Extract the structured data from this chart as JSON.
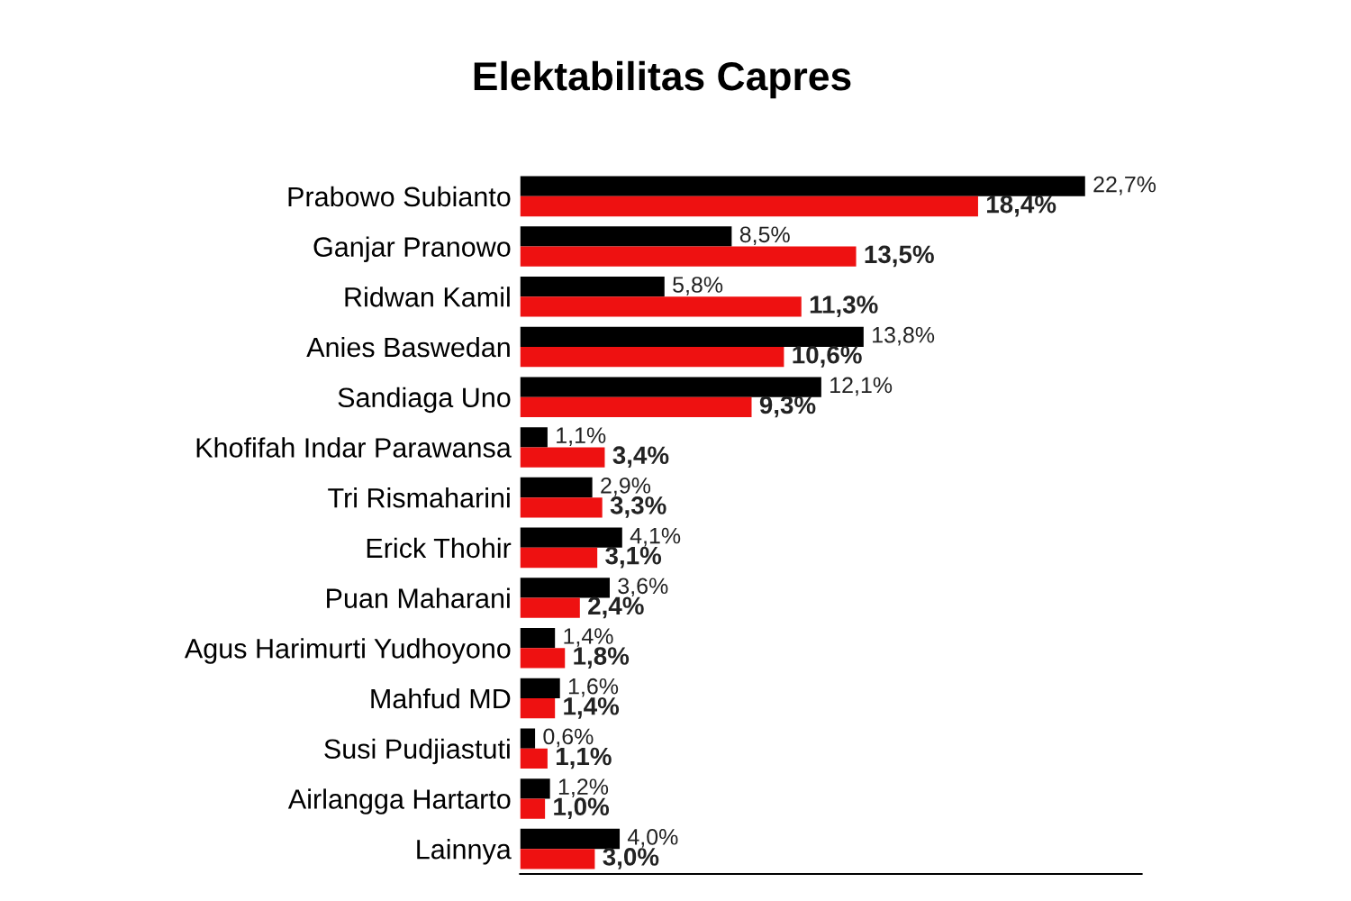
{
  "chart_data": {
    "type": "bar",
    "orientation": "horizontal",
    "title": "Elektabilitas Capres",
    "categories": [
      "Prabowo Subianto",
      "Ganjar Pranowo",
      "Ridwan Kamil",
      "Anies Baswedan",
      "Sandiaga Uno",
      "Khofifah Indar Parawansa",
      "Tri Rismaharini",
      "Erick Thohir",
      "Puan Maharani",
      "Agus Harimurti Yudhoyono",
      "Mahfud MD",
      "Susi Pudjiastuti",
      "Airlangga Hartarto",
      "Lainnya"
    ],
    "series": [
      {
        "color": "#000000",
        "values": [
          22.7,
          8.5,
          5.8,
          13.8,
          12.1,
          1.1,
          2.9,
          4.1,
          3.6,
          1.4,
          1.6,
          0.6,
          1.2,
          4.0
        ],
        "value_labels": [
          "22,7%",
          "8,5%",
          "5,8%",
          "13,8%",
          "12,1%",
          "1,1%",
          "2,9%",
          "4,1%",
          "3,6%",
          "1,4%",
          "1,6%",
          "0,6%",
          "1,2%",
          "4,0%"
        ]
      },
      {
        "color": "#ee1111",
        "values": [
          18.4,
          13.5,
          11.3,
          10.6,
          9.3,
          3.4,
          3.3,
          3.1,
          2.4,
          1.8,
          1.4,
          1.1,
          1.0,
          3.0
        ],
        "value_labels": [
          "18,4%",
          "13,5%",
          "11,3%",
          "10,6%",
          "9,3%",
          "3,4%",
          "3,3%",
          "3,1%",
          "2,4%",
          "1,8%",
          "1,4%",
          "1,1%",
          "1,0%",
          "3,0%"
        ]
      }
    ],
    "tick_labels": "y",
    "grid": false,
    "legend": false
  }
}
